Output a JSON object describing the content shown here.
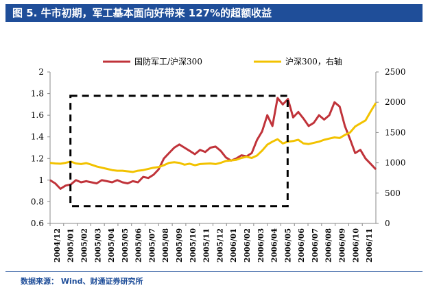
{
  "header": {
    "title": "图 5. 牛市初期，军工基本面向好带来 127%的超额收益"
  },
  "footer": {
    "source": "数据来源： Wind、财通证券研究所"
  },
  "chart_data": {
    "type": "line",
    "title": "",
    "xlabel": "",
    "ylabel": "",
    "x_tick_labels": [
      "2004/12",
      "2005/01",
      "2005/02",
      "2005/03",
      "2005/04",
      "2005/05",
      "2005/06",
      "2005/07",
      "2005/08",
      "2005/09",
      "2005/10",
      "2005/11",
      "2005/12",
      "2006/01",
      "2006/02",
      "2006/03",
      "2006/04",
      "2006/05",
      "2006/06",
      "2006/07",
      "2006/08",
      "2006/09",
      "2006/10",
      "2006/11"
    ],
    "y_left": {
      "ticks": [
        "0.6",
        "0.8",
        "1",
        "1.2",
        "1.4",
        "1.6",
        "1.8",
        "2"
      ],
      "range": [
        0.6,
        2.0
      ]
    },
    "y_right": {
      "ticks": [
        "0",
        "500",
        "1000",
        "1500",
        "2000",
        "2500"
      ],
      "range": [
        0,
        2500
      ]
    },
    "legend": {
      "position": "top"
    },
    "series": [
      {
        "name": "国防军工/沪深300",
        "axis": "left",
        "color": "#c0333a",
        "values": [
          1.0,
          0.97,
          0.92,
          0.95,
          0.96,
          1.0,
          0.98,
          0.99,
          0.98,
          0.97,
          1.0,
          0.99,
          0.98,
          1.0,
          0.98,
          0.97,
          0.99,
          0.98,
          1.03,
          1.02,
          1.05,
          1.1,
          1.2,
          1.25,
          1.3,
          1.33,
          1.3,
          1.27,
          1.24,
          1.28,
          1.26,
          1.3,
          1.31,
          1.27,
          1.21,
          1.18,
          1.2,
          1.23,
          1.22,
          1.25,
          1.37,
          1.45,
          1.6,
          1.5,
          1.76,
          1.7,
          1.75,
          1.58,
          1.63,
          1.57,
          1.5,
          1.53,
          1.6,
          1.56,
          1.6,
          1.72,
          1.68,
          1.5,
          1.38,
          1.25,
          1.28,
          1.2,
          1.15,
          1.1
        ]
      },
      {
        "name": "沪深300，右轴",
        "axis": "right",
        "color": "#f2c200",
        "values": [
          1000,
          990,
          985,
          1000,
          1020,
          990,
          980,
          995,
          970,
          940,
          920,
          900,
          880,
          870,
          870,
          860,
          850,
          870,
          880,
          900,
          920,
          930,
          960,
          1000,
          1010,
          1000,
          970,
          985,
          960,
          980,
          985,
          990,
          980,
          1000,
          1030,
          1040,
          1050,
          1080,
          1100,
          1080,
          1120,
          1200,
          1300,
          1350,
          1390,
          1320,
          1350,
          1360,
          1380,
          1320,
          1310,
          1330,
          1350,
          1380,
          1400,
          1420,
          1410,
          1460,
          1500,
          1600,
          1650,
          1700,
          1850,
          1990
        ]
      }
    ],
    "annotation": {
      "type": "dashed-rectangle",
      "x_from": "2005/01",
      "x_to": "2006/05",
      "y_from": 0.76,
      "y_to": 1.78
    }
  }
}
